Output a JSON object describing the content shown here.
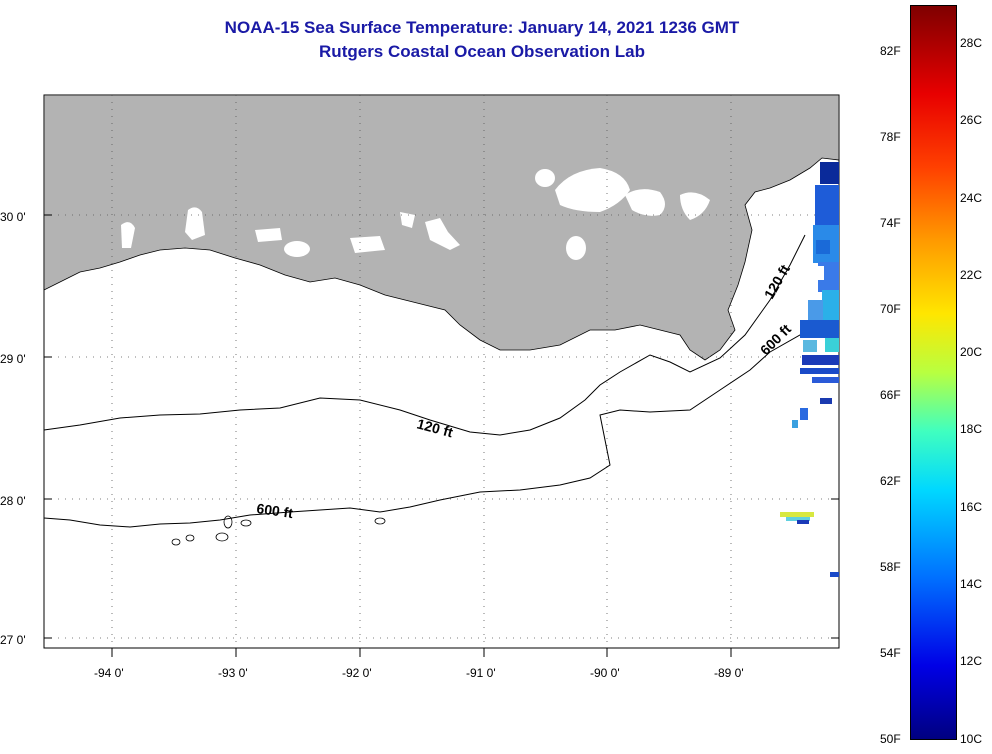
{
  "title": {
    "line1": "NOAA-15 Sea Surface Temperature:  January 14, 2021 1236 GMT",
    "line2": "Rutgers Coastal Ocean Observation Lab"
  },
  "map": {
    "lat_labels": [
      "30 0'",
      "29 0'",
      "28 0'",
      "27 0'"
    ],
    "lon_labels": [
      "-94 0'",
      "-93 0'",
      "-92 0'",
      "-91 0'",
      "-90 0'",
      "-89 0'"
    ],
    "contour_labels": [
      "120 ft",
      "600 ft",
      "120 ft",
      "600 ft"
    ],
    "colors": {
      "land": "#b3b3b3",
      "water": "#ffffff",
      "contour": "#000000"
    }
  },
  "colorbar": {
    "fahrenheit": [
      "82F",
      "78F",
      "74F",
      "70F",
      "66F",
      "62F",
      "58F",
      "54F",
      "50F"
    ],
    "celsius": [
      "28C",
      "26C",
      "24C",
      "22C",
      "20C",
      "18C",
      "16C",
      "14C",
      "12C",
      "10C"
    ]
  }
}
